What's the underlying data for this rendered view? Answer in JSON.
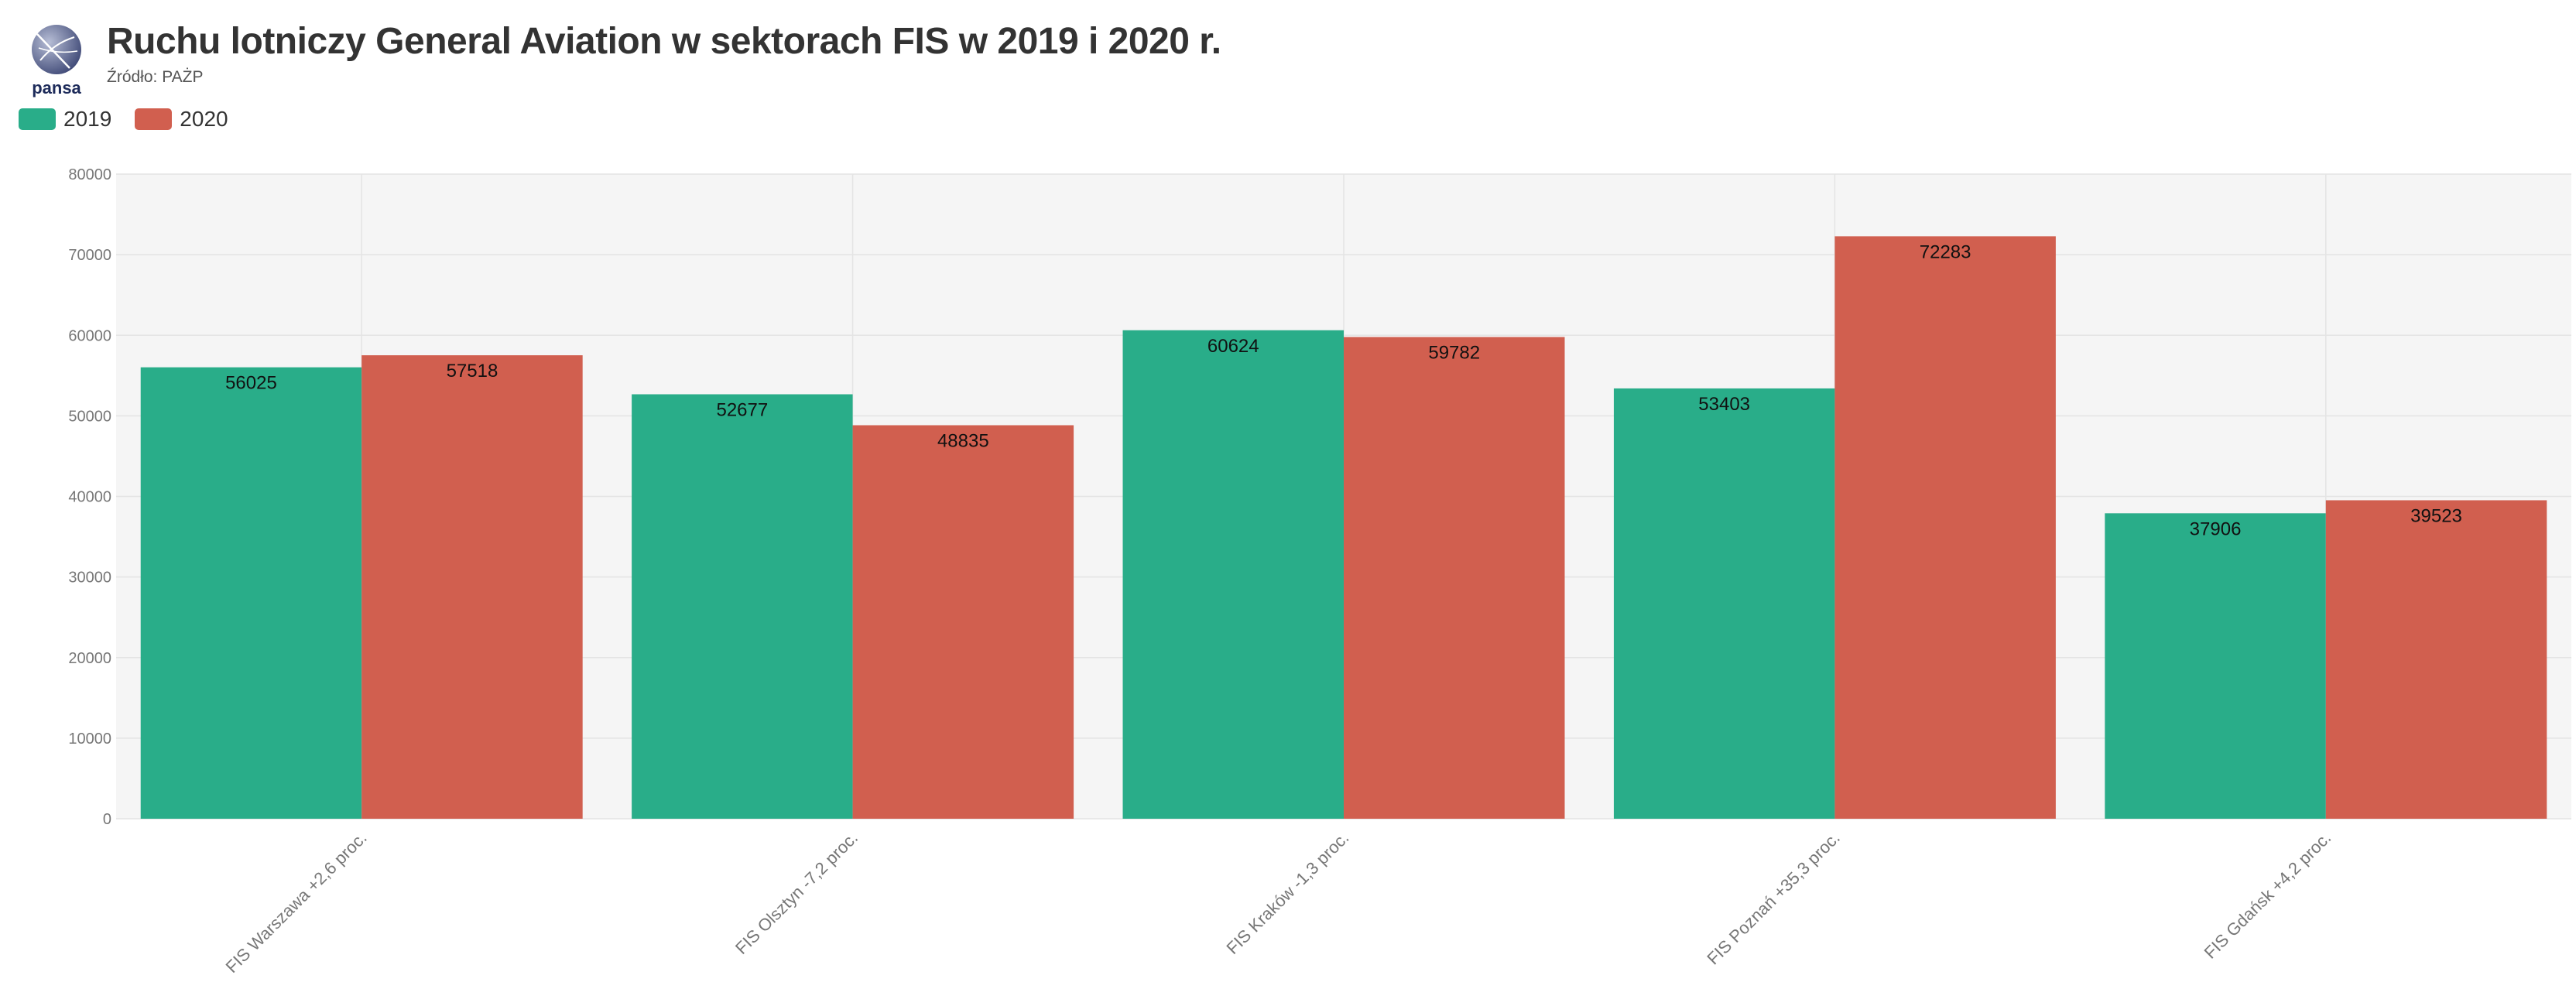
{
  "header": {
    "title": "Ruchu lotniczy General Aviation w sektorach FIS w 2019 i 2020 r.",
    "source": "Źródło: PAŻP",
    "logo_text": "pansa"
  },
  "colors": {
    "series_2019": "#29ad89",
    "series_2020": "#d15f4f",
    "plot_background": "#f5f5f5",
    "grid": "#e4e4e4",
    "tick_text": "#777777",
    "logo_text": "#1d2b5a"
  },
  "chart_data": {
    "type": "bar",
    "title": "Ruchu lotniczy General Aviation w sektorach FIS w 2019 i 2020 r.",
    "subtitle": "Źródło: PAŻP",
    "categories": [
      "FIS Warszawa +2,6 proc.",
      "FIS Olsztyn -7,2 proc.",
      "FIS Kraków -1,3 proc.",
      "FIS Poznań +35,3 proc.",
      "FIS Gdańsk +4,2 proc."
    ],
    "series": [
      {
        "name": "2019",
        "values": [
          56025,
          52677,
          60624,
          53403,
          37906
        ]
      },
      {
        "name": "2020",
        "values": [
          57518,
          48835,
          59782,
          72283,
          39523
        ]
      }
    ],
    "yticks": [
      0,
      10000,
      20000,
      30000,
      40000,
      50000,
      60000,
      70000,
      80000
    ],
    "ylim": [
      0,
      80000
    ],
    "xlabel": "",
    "ylabel": "",
    "grid": true,
    "legend_position": "top-left",
    "data_labels": true
  }
}
